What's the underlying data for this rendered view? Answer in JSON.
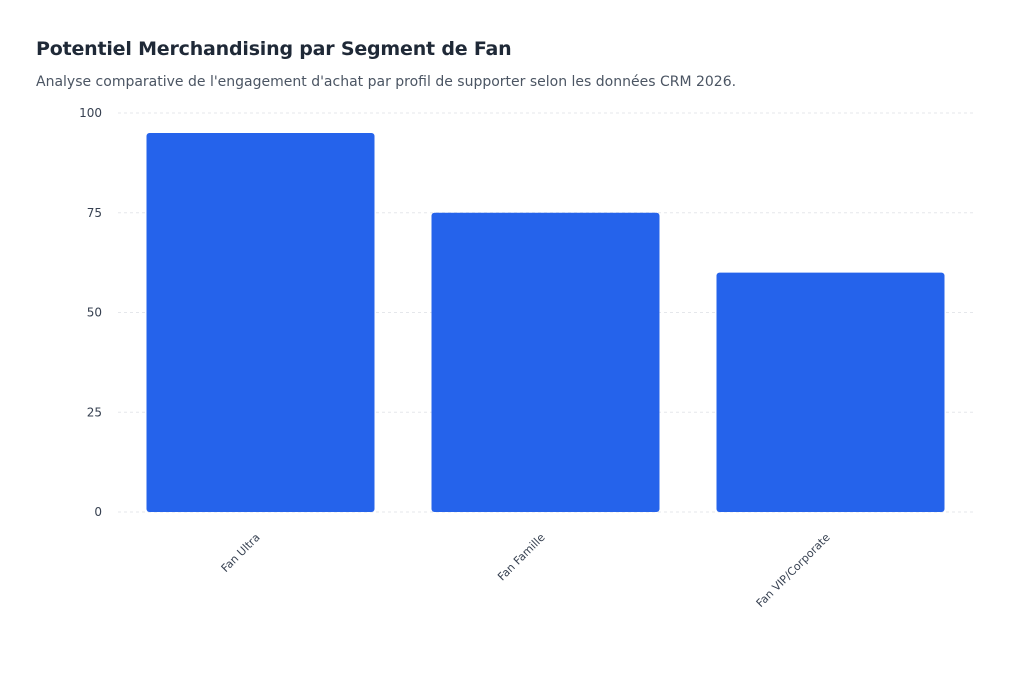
{
  "chart_data": {
    "type": "bar",
    "title": "Potentiel Merchandising par Segment de Fan",
    "subtitle": "Analyse comparative de l'engagement d'achat par profil de supporter selon les données CRM 2026.",
    "categories": [
      "Fan Ultra",
      "Fan Famille",
      "Fan VIP/Corporate"
    ],
    "values": [
      95,
      75,
      60
    ],
    "yticks": [
      0,
      25,
      50,
      75,
      100
    ],
    "ylim": [
      0,
      100
    ],
    "grid": true,
    "bar_color": "#2563eb",
    "grid_color": "#e5e7eb"
  }
}
